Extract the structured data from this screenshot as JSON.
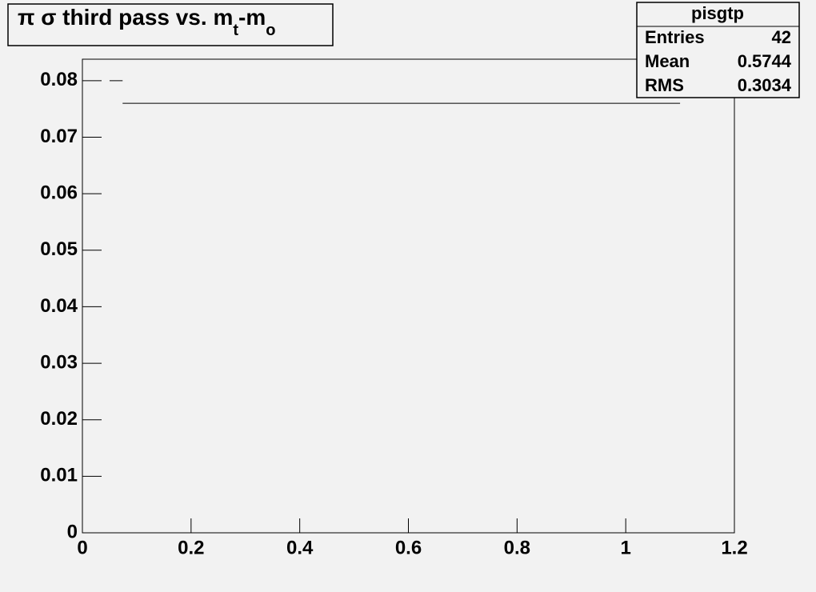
{
  "chart_data": {
    "type": "histogram",
    "title_parts": [
      "π σ third pass vs. m",
      "t",
      "-m",
      "o"
    ],
    "bins": [
      0.05,
      0.074,
      1.1
    ],
    "values": [
      0.08,
      0.076
    ],
    "color": "#000000",
    "xlim": [
      0,
      1.2
    ],
    "xticks": [
      0,
      0.2,
      0.4,
      0.6,
      0.8,
      1,
      1.2
    ],
    "ylim": [
      0,
      0.0838
    ],
    "yticks": [
      0,
      0.01,
      0.02,
      0.03,
      0.04,
      0.05,
      0.06,
      0.07,
      0.08
    ],
    "stats": {
      "title": "pisgtp",
      "labels": [
        "Entries",
        "Mean",
        "RMS"
      ],
      "values": [
        42,
        0.5744,
        0.3034
      ]
    }
  }
}
